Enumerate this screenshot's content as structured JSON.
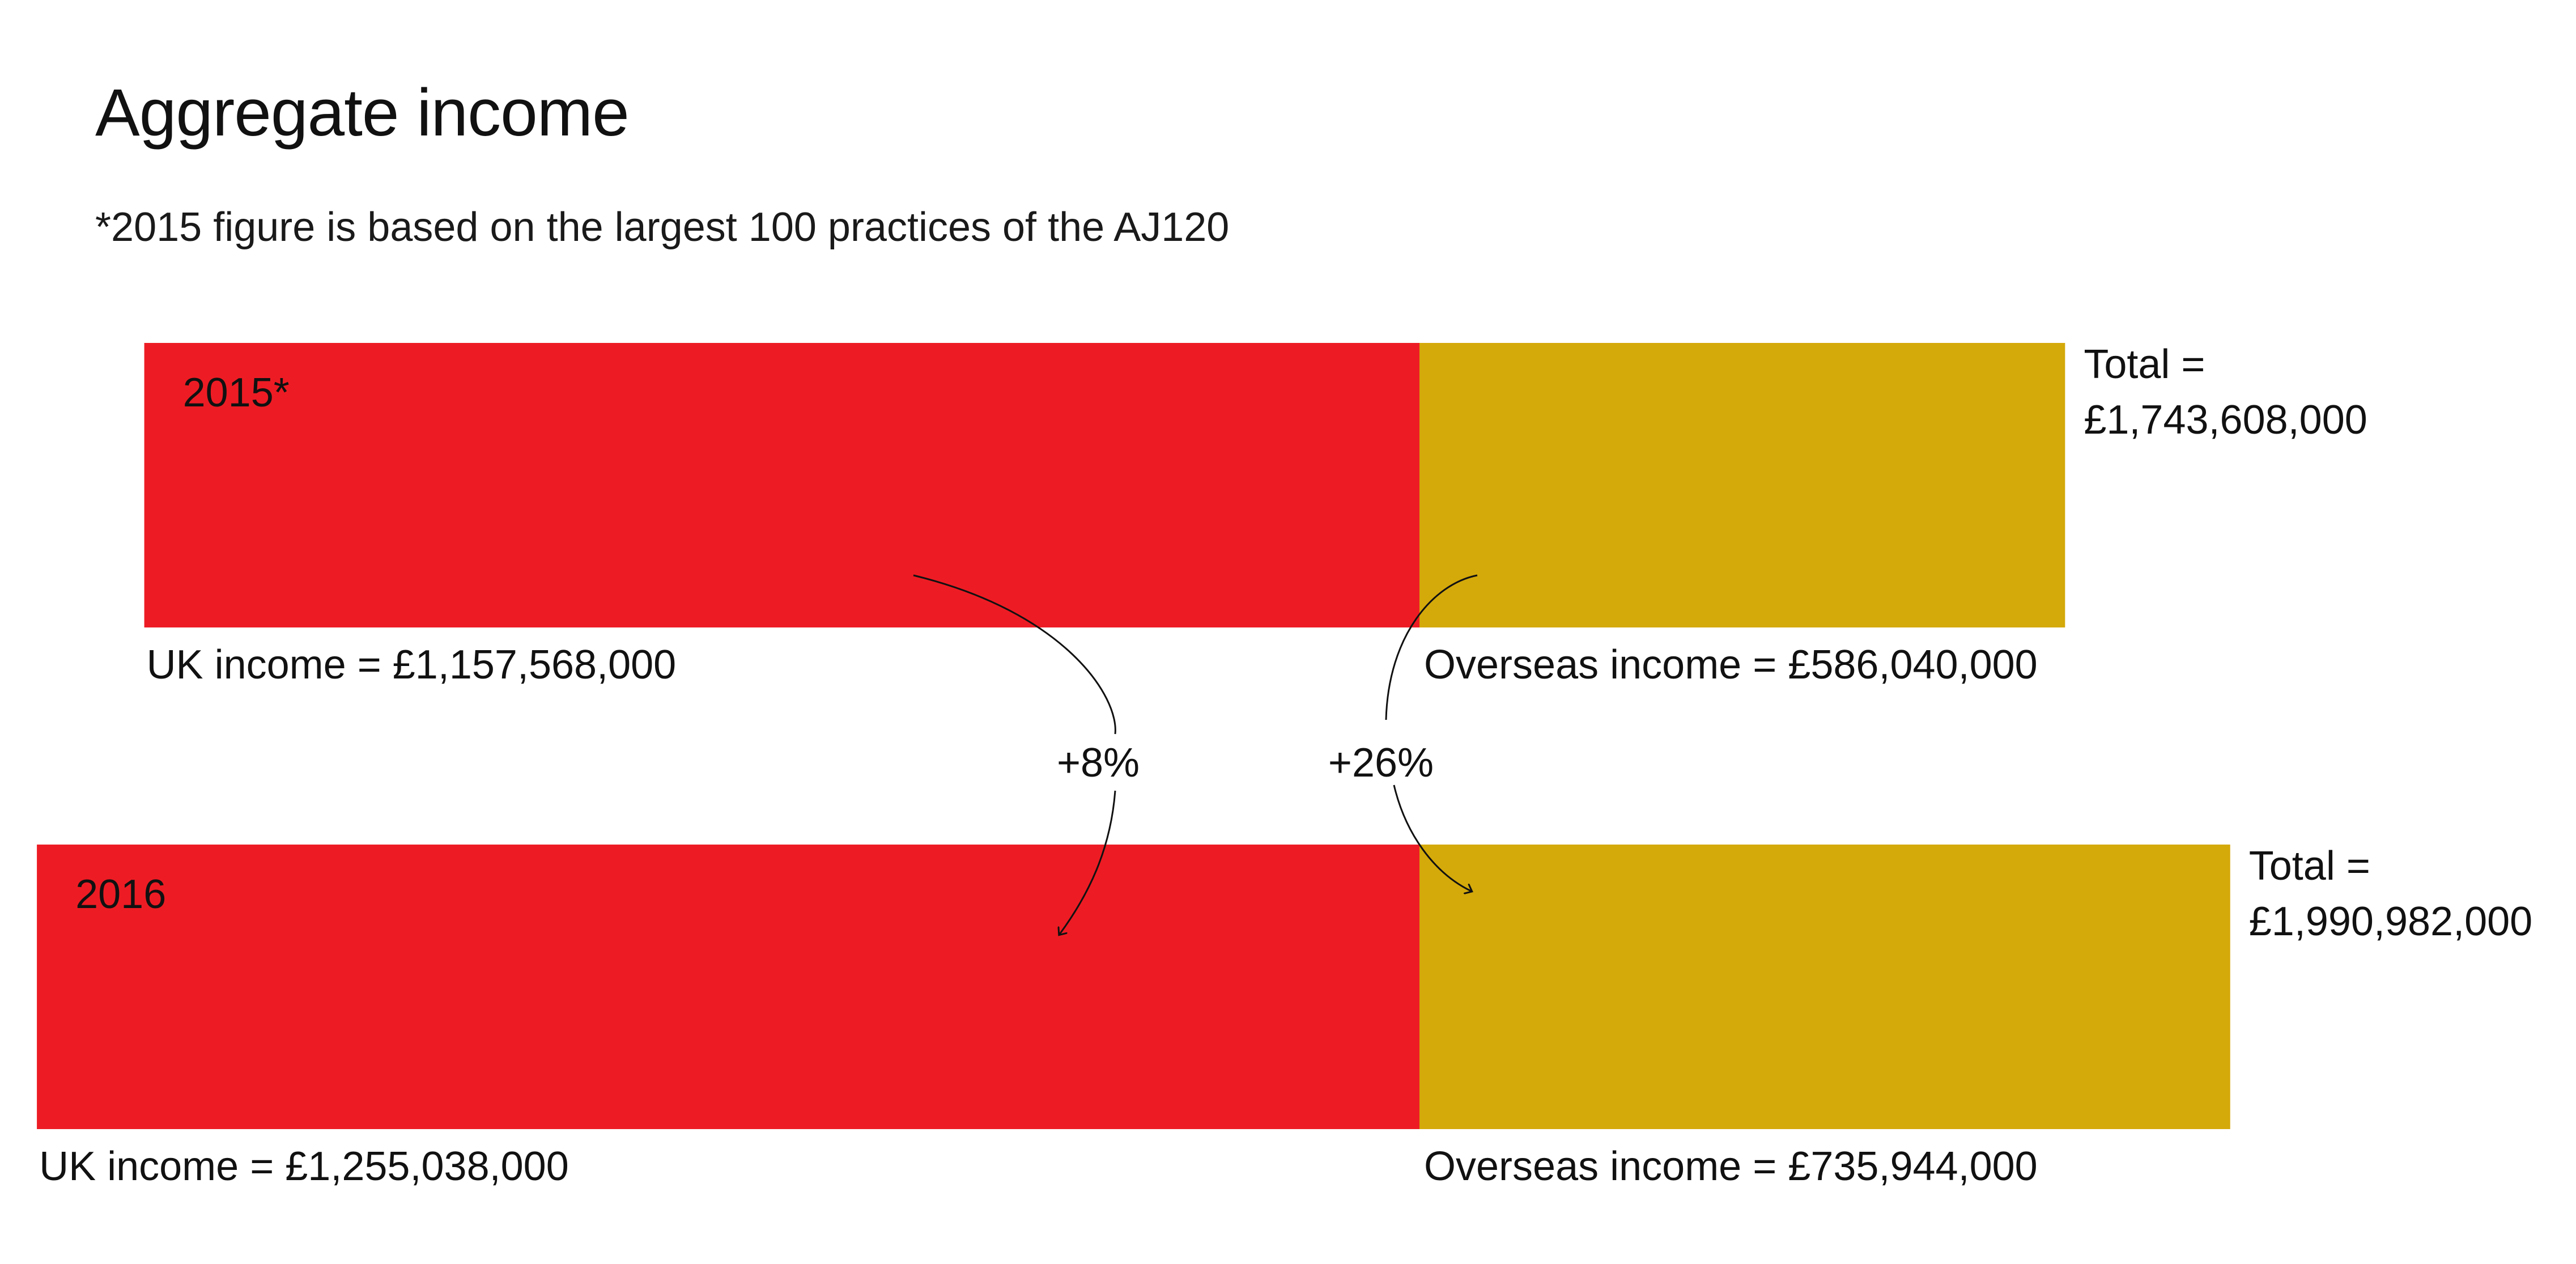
{
  "title": "Aggregate income",
  "subtitle": "*2015 figure is based on the largest 100 practices of the AJ120",
  "colors": {
    "uk": "#ED1C24",
    "overseas": "#D4A90A",
    "text": "#111111"
  },
  "chart_data": {
    "type": "bar",
    "orientation": "horizontal-stacked",
    "title": "Aggregate income",
    "note": "*2015 figure is based on the largest 100 practices of the AJ120",
    "rows": [
      {
        "year_label": "2015*",
        "uk_value": 1157568000,
        "overseas_value": 586040000,
        "total_value": 1743608000,
        "uk_label": "UK income = £1,157,568,000",
        "overseas_label": "Overseas income = £586,040,000",
        "total_label_line1": "Total =",
        "total_label_line2": "£1,743,608,000"
      },
      {
        "year_label": "2016",
        "uk_value": 1255038000,
        "overseas_value": 735944000,
        "total_value": 1990982000,
        "uk_label": "UK income = £1,255,038,000",
        "overseas_label": "Overseas income = £735,944,000",
        "total_label_line1": "Total =",
        "total_label_line2": "£1,990,982,000"
      }
    ],
    "changes": [
      {
        "series": "UK income",
        "label": "+8%"
      },
      {
        "series": "Overseas income",
        "label": "+26%"
      }
    ]
  }
}
